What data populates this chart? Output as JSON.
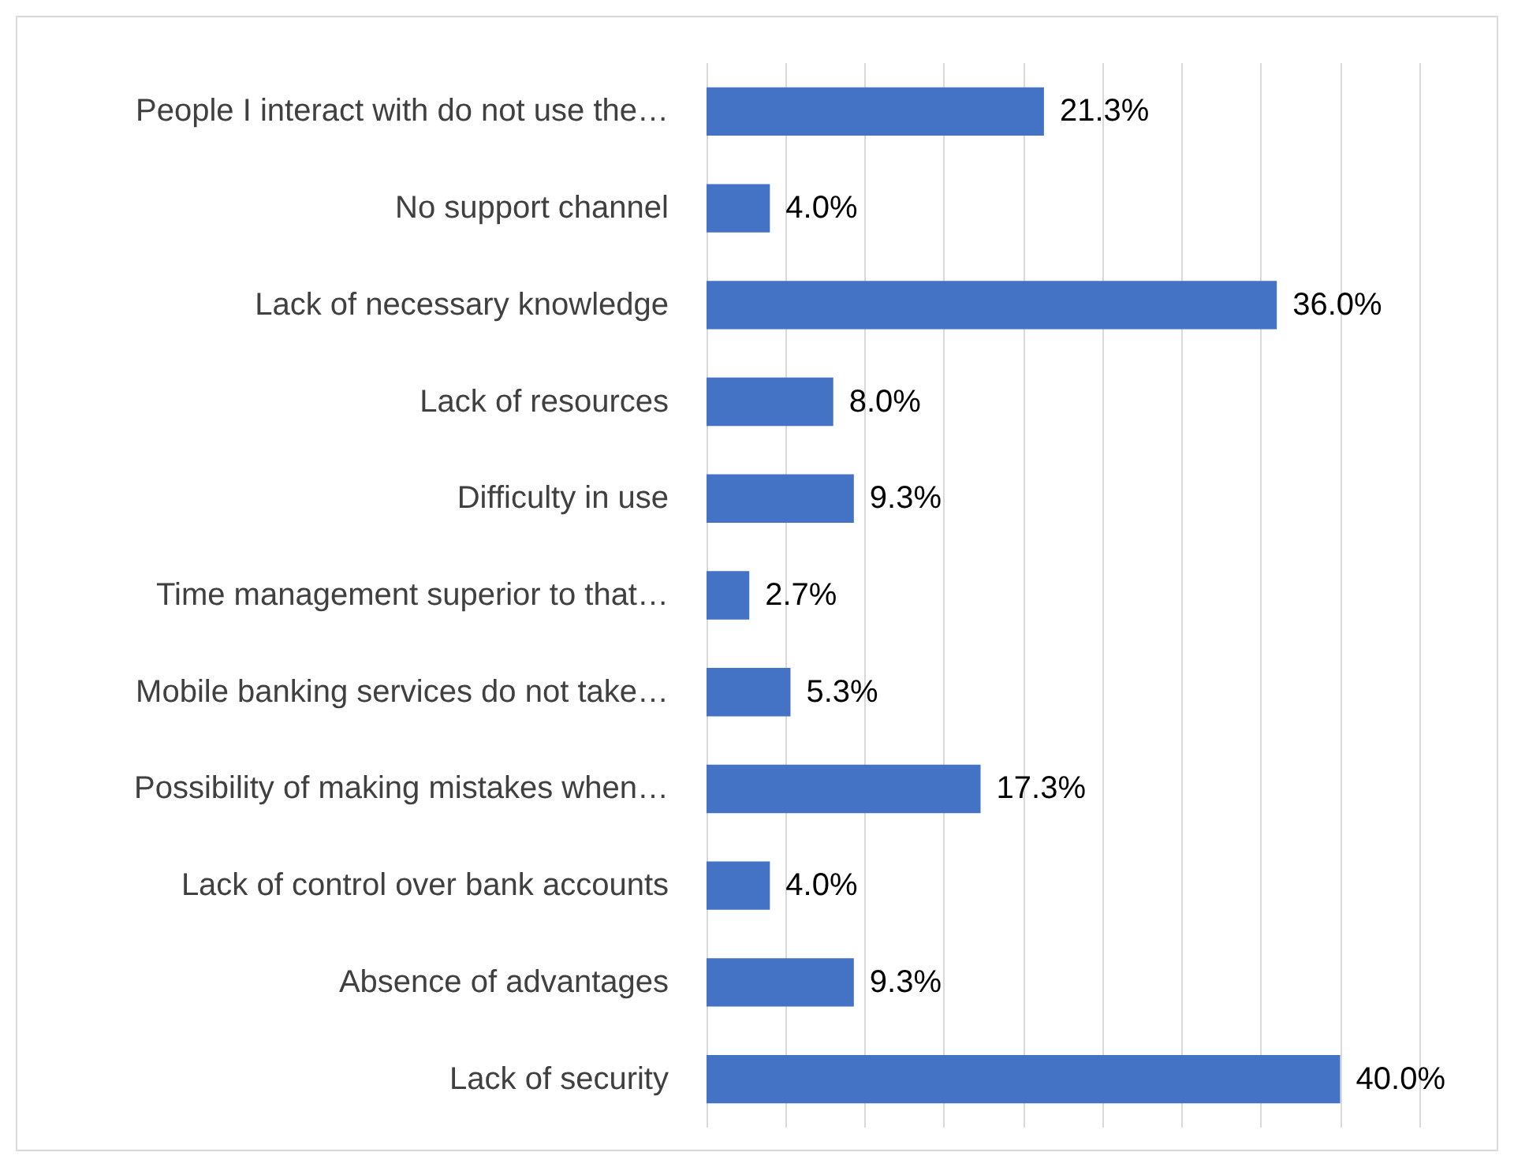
{
  "chart_data": {
    "type": "bar",
    "orientation": "horizontal",
    "categories": [
      "People I interact with do not use the…",
      "No support channel",
      "Lack of necessary knowledge",
      "Lack of resources",
      "Difficulty in use",
      "Time management superior to that…",
      "Mobile banking services do not take…",
      "Possibility of making mistakes when…",
      "Lack of control over bank accounts",
      "Absence of advantages",
      "Lack of security"
    ],
    "values": [
      21.3,
      4.0,
      36.0,
      8.0,
      9.3,
      2.7,
      5.3,
      17.3,
      4.0,
      9.3,
      40.0
    ],
    "value_labels": [
      "21.3%",
      "4.0%",
      "36.0%",
      "8.0%",
      "9.3%",
      "2.7%",
      "5.3%",
      "17.3%",
      "4.0%",
      "9.3%",
      "40.0%"
    ],
    "color": "#4472c4",
    "xlim": [
      0,
      45
    ],
    "xticks": [
      {
        "value": 0,
        "label": null
      },
      {
        "value": 5,
        "label": null
      },
      {
        "value": 10,
        "label": null
      },
      {
        "value": 15,
        "label": null
      },
      {
        "value": 20,
        "label": null
      },
      {
        "value": 25,
        "label": null
      },
      {
        "value": 30,
        "label": null
      },
      {
        "value": 35,
        "label": null
      },
      {
        "value": 40,
        "label": null
      },
      {
        "value": 45,
        "label": null
      }
    ],
    "grid": "x",
    "tick_labels": "y"
  }
}
